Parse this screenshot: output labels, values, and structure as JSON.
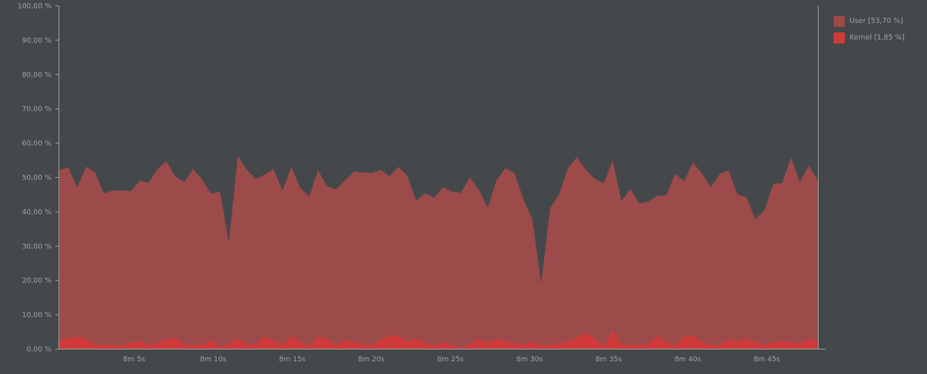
{
  "chart_data": {
    "type": "area",
    "stacked": true,
    "ylim": [
      0,
      100
    ],
    "yticks": [
      "0,00 %",
      "10,00 %",
      "20,00 %",
      "30,00 %",
      "40,00 %",
      "50,00 %",
      "60,00 %",
      "70,00 %",
      "80,00 %",
      "90,00 %",
      "100,00 %"
    ],
    "xticks": [
      "8m 5s",
      "8m 10s",
      "8m 15s",
      "8m 20s",
      "8m 25s",
      "8m 30s",
      "8m 35s",
      "8m 40s",
      "8m 45s"
    ],
    "xtick_seconds": [
      485,
      490,
      495,
      500,
      505,
      510,
      515,
      520,
      525
    ],
    "x_start_seconds": 480.6,
    "x_step_seconds": 0.5,
    "legend_position": "top-right",
    "series": [
      {
        "name": "User [53,70 %]",
        "color": "#9c4a4a",
        "values": [
          49.5,
          49.8,
          43.5,
          50.2,
          50.3,
          44.2,
          45.1,
          45.2,
          44.1,
          46.9,
          47.3,
          50.6,
          51.9,
          47.0,
          47.4,
          51.4,
          48.3,
          42.7,
          45.3,
          29.6,
          53.2,
          51.0,
          48.3,
          47.2,
          50.1,
          45.1,
          49.2,
          44.8,
          43.9,
          48.4,
          44.4,
          45.4,
          46.4,
          49.6,
          50.2,
          50.2,
          49.5,
          46.7,
          49.2,
          48.4,
          40.1,
          43.8,
          43.0,
          45.3,
          44.8,
          45.1,
          48.7,
          43.5,
          39.3,
          46.3,
          50.6,
          49.4,
          42.6,
          35.9,
          18.0,
          40.1,
          43.3,
          50.6,
          52.5,
          47.5,
          46.6,
          47.7,
          49.5,
          41.9,
          45.5,
          41.3,
          41.7,
          41.0,
          42.6,
          50.1,
          45.3,
          50.6,
          49.1,
          46.1,
          49.9,
          49.1,
          43.0,
          41.2,
          35.7,
          39.3,
          46.0,
          46.3,
          53.7,
          47.2,
          50.5,
          46.9
        ],
        "values_note_ignore": ""
      },
      {
        "name": "Kernel [1,85 %]",
        "color": "#d13a3a",
        "values": [
          2.5,
          3.0,
          3.5,
          2.8,
          1.2,
          1.0,
          1.0,
          0.9,
          1.8,
          2.1,
          1.0,
          1.8,
          2.8,
          3.1,
          1.2,
          1.0,
          1.0,
          2.5,
          0.5,
          1.4,
          2.9,
          1.2,
          1.2,
          3.5,
          2.3,
          1.0,
          3.8,
          2.0,
          0.5,
          3.6,
          2.9,
          1.0,
          2.6,
          2.0,
          1.2,
          1.0,
          2.6,
          3.6,
          3.8,
          2.0,
          2.9,
          1.6,
          0.9,
          1.8,
          1.0,
          0.3,
          1.2,
          2.8,
          1.8,
          2.8,
          2.0,
          1.8,
          1.0,
          2.0,
          1.0,
          0.9,
          1.6,
          2.0,
          3.3,
          4.6,
          2.9,
          0.5,
          5.3,
          1.2,
          1.0,
          1.0,
          1.2,
          3.6,
          2.0,
          0.8,
          3.6,
          3.6,
          2.0,
          1.0,
          1.0,
          2.9,
          2.0,
          2.9,
          2.0,
          1.0,
          2.0,
          2.0,
          2.0,
          1.3,
          2.9,
          2.0
        ]
      }
    ]
  }
}
